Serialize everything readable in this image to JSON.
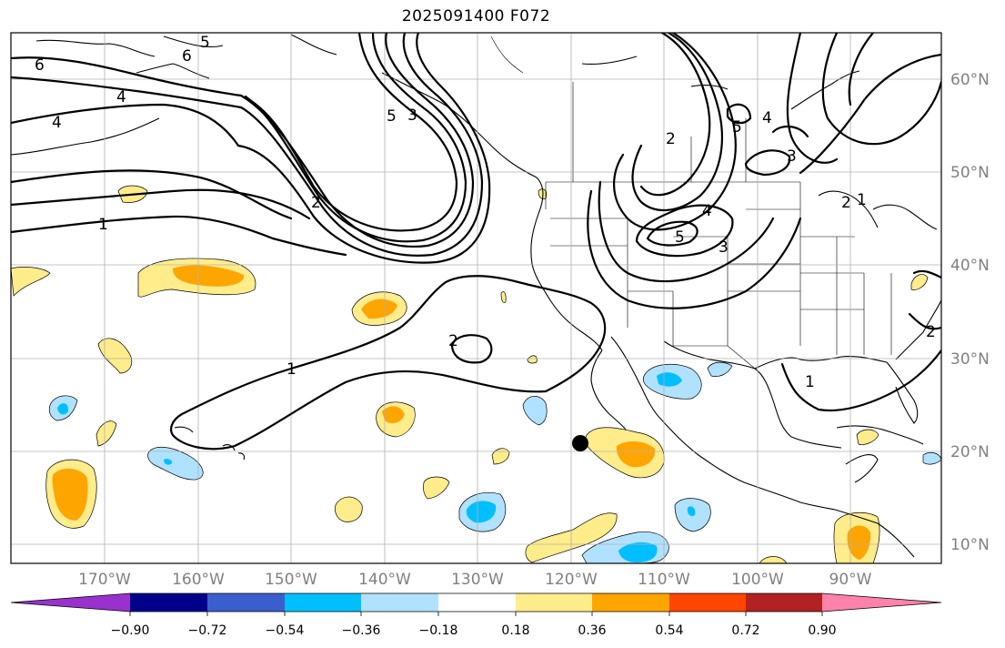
{
  "title": "2025091400 F072",
  "lon_labels": [
    "170°W",
    "160°W",
    "150°W",
    "140°W",
    "130°W",
    "120°W",
    "110°W",
    "100°W",
    "90°W"
  ],
  "lat_labels": [
    "60°N",
    "50°N",
    "40°N",
    "30°N",
    "20°N",
    "10°N"
  ],
  "colorbar": {
    "tick_labels": [
      "−0.90",
      "−0.72",
      "−0.54",
      "−0.36",
      "−0.18",
      "0.18",
      "0.36",
      "0.54",
      "0.72",
      "0.90"
    ],
    "colors": [
      "#9932cc",
      "#00008b",
      "#3a5fcd",
      "#00bfff",
      "#b0e2ff",
      "#ffffff",
      "#ffec8b",
      "#ffa500",
      "#ff4500",
      "#b22222",
      "#ff82ab"
    ]
  },
  "contour_labels": [
    "6",
    "5",
    "6",
    "4",
    "4",
    "2",
    "1",
    "5",
    "3",
    "2",
    "5",
    "4",
    "3",
    "5",
    "4",
    "3",
    "2",
    "1",
    "2",
    "1",
    "2",
    "1"
  ],
  "marker": "black-dot"
}
